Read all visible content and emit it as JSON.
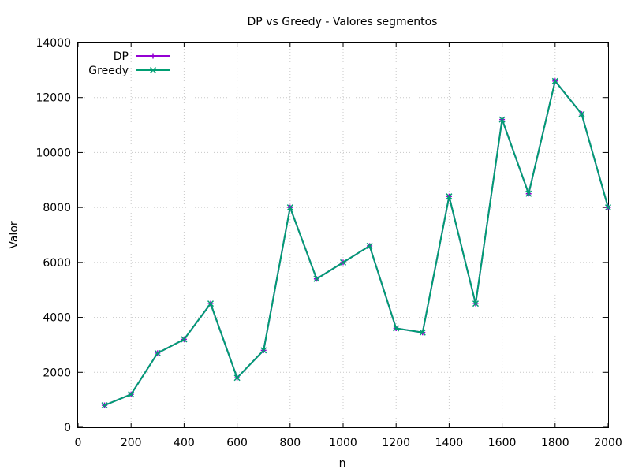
{
  "chart_data": {
    "type": "line",
    "title": "DP vs Greedy - Valores segmentos",
    "xlabel": "n",
    "ylabel": "Valor",
    "xlim": [
      0,
      2000
    ],
    "ylim": [
      0,
      14000
    ],
    "x_ticks": [
      0,
      200,
      400,
      600,
      800,
      1000,
      1200,
      1400,
      1600,
      1800,
      2000
    ],
    "y_ticks": [
      0,
      2000,
      4000,
      6000,
      8000,
      10000,
      12000,
      14000
    ],
    "grid": true,
    "legend_position": "top-left",
    "x": [
      100,
      200,
      300,
      400,
      500,
      600,
      700,
      800,
      900,
      1000,
      1100,
      1200,
      1300,
      1400,
      1500,
      1600,
      1700,
      1800,
      1900,
      2000
    ],
    "series": [
      {
        "name": "DP",
        "color": "#9400d3",
        "marker": "plus",
        "values": [
          800,
          1200,
          2700,
          3200,
          4500,
          1800,
          2800,
          8000,
          5400,
          6000,
          6600,
          3600,
          3450,
          8400,
          4500,
          11200,
          8500,
          12600,
          11400,
          8000
        ]
      },
      {
        "name": "Greedy",
        "color": "#009e73",
        "marker": "cross",
        "values": [
          800,
          1200,
          2700,
          3200,
          4500,
          1800,
          2800,
          8000,
          5400,
          6000,
          6600,
          3600,
          3450,
          8400,
          4500,
          11200,
          8500,
          12600,
          11400,
          8000
        ]
      }
    ]
  }
}
